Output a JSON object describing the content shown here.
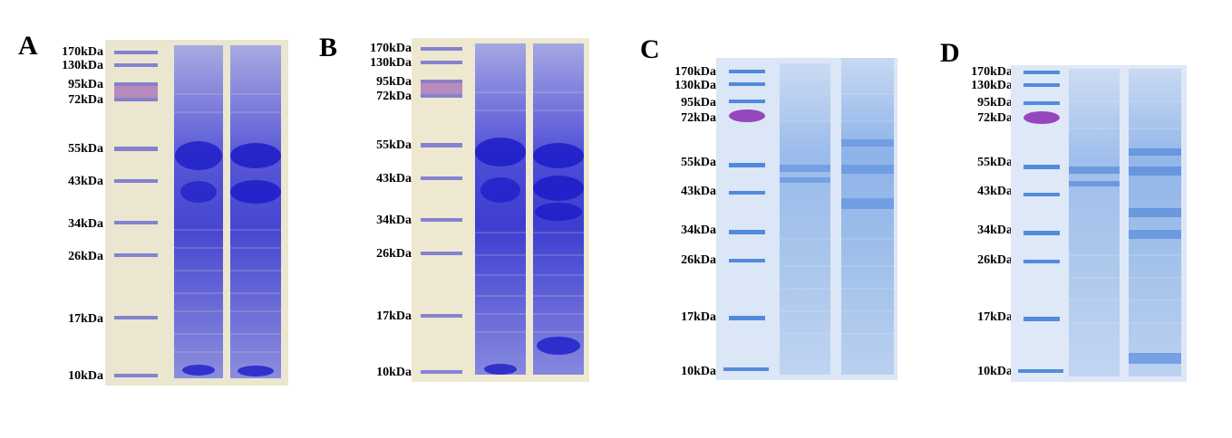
{
  "panels": [
    {
      "letter": "A",
      "markers": [
        "170kDa",
        "130kDa",
        "95kDa",
        "72kDa",
        "55kDa",
        "43kDa",
        "34kDa",
        "26kDa",
        "17kDa",
        "10kDa"
      ],
      "gel_tint": "#e8e2c8",
      "band_color": "#2b2bd6",
      "lanes": 3
    },
    {
      "letter": "B",
      "markers": [
        "170kDa",
        "130kDa",
        "95kDa",
        "72kDa",
        "55kDa",
        "43kDa",
        "34kDa",
        "26kDa",
        "17kDa",
        "10kDa"
      ],
      "gel_tint": "#ece6cc",
      "band_color": "#2424d8",
      "lanes": 3
    },
    {
      "letter": "C",
      "markers": [
        "170kDa",
        "130kDa",
        "95kDa",
        "72kDa",
        "55kDa",
        "43kDa",
        "34kDa",
        "26kDa",
        "17kDa",
        "10kDa"
      ],
      "gel_tint": "#d8e4f4",
      "band_color": "#4a82d8",
      "lanes": 3
    },
    {
      "letter": "D",
      "markers": [
        "170kDa",
        "130kDa",
        "95kDa",
        "72kDa",
        "55kDa",
        "43kDa",
        "34kDa",
        "26kDa",
        "17kDa",
        "10kDa"
      ],
      "gel_tint": "#dce6f6",
      "band_color": "#4a82d8",
      "lanes": 3
    }
  ]
}
